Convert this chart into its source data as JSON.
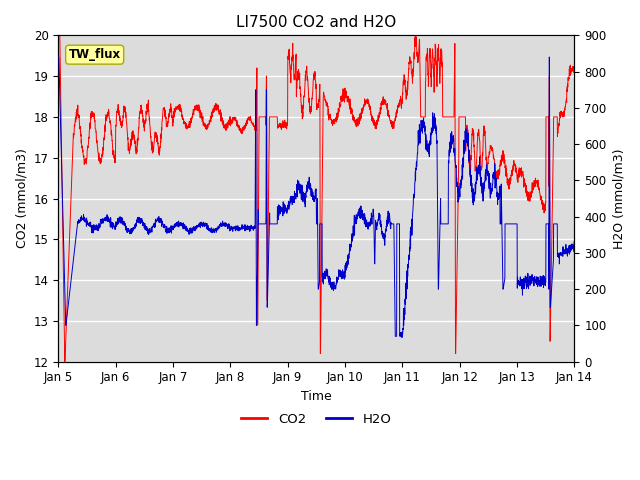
{
  "title": "LI7500 CO2 and H2O",
  "xlabel": "Time",
  "ylabel_left": "CO2 (mmol/m3)",
  "ylabel_right": "H2O (mmol/m3)",
  "ylim_left": [
    12.0,
    20.0
  ],
  "ylim_right": [
    0,
    900
  ],
  "xtick_labels": [
    "Jan 5",
    "Jan 6",
    "Jan 7",
    "Jan 8",
    "Jan 9",
    "Jan 10",
    "Jan 11",
    "Jan 12",
    "Jan 13",
    "Jan 14"
  ],
  "annotation_text": "TW_flux",
  "co2_color": "#FF0000",
  "h2o_color": "#0000CC",
  "legend_co2": "CO2",
  "legend_h2o": "H2O",
  "background_color": "#DCDCDC",
  "title_fontsize": 11,
  "axis_fontsize": 9,
  "tick_fontsize": 8.5
}
